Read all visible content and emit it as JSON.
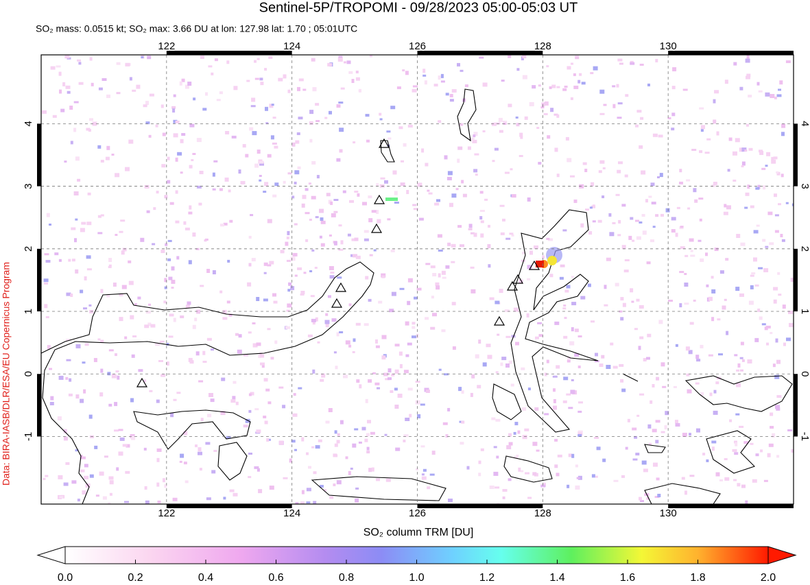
{
  "title": "Sentinel-5P/TROPOMI - 09/28/2023 05:00-05:03 UT",
  "subtitle": "SO₂ mass: 0.0515 kt; SO₂ max: 3.66 DU at lon: 127.98 lat: 1.70 ; 05:01UTC",
  "map": {
    "lonlim": [
      120,
      132
    ],
    "latlim": [
      -2.08,
      5.1
    ],
    "lonticks": [
      122,
      124,
      126,
      128,
      130
    ],
    "latticks": [
      -1,
      0,
      1,
      2,
      3,
      4
    ]
  },
  "colorbar": {
    "label": "SO₂ column TRM [DU]",
    "lim": [
      0,
      2
    ],
    "ticks": [
      {
        "value": 0,
        "label": "0.0"
      },
      {
        "value": 0.2,
        "label": "0.2"
      },
      {
        "value": 0.4,
        "label": "0.4"
      },
      {
        "value": 0.6,
        "label": "0.6"
      },
      {
        "value": 0.8,
        "label": "0.8"
      },
      {
        "value": 1,
        "label": "1.0"
      },
      {
        "value": 1.2,
        "label": "1.2"
      },
      {
        "value": 1.4,
        "label": "1.4"
      },
      {
        "value": 1.6,
        "label": "1.6"
      },
      {
        "value": 1.8,
        "label": "1.8"
      },
      {
        "value": 2,
        "label": "2.0"
      }
    ]
  },
  "credit": "Data: BIRA-IASB/DLR/ESA/EU Copernicus Program"
}
